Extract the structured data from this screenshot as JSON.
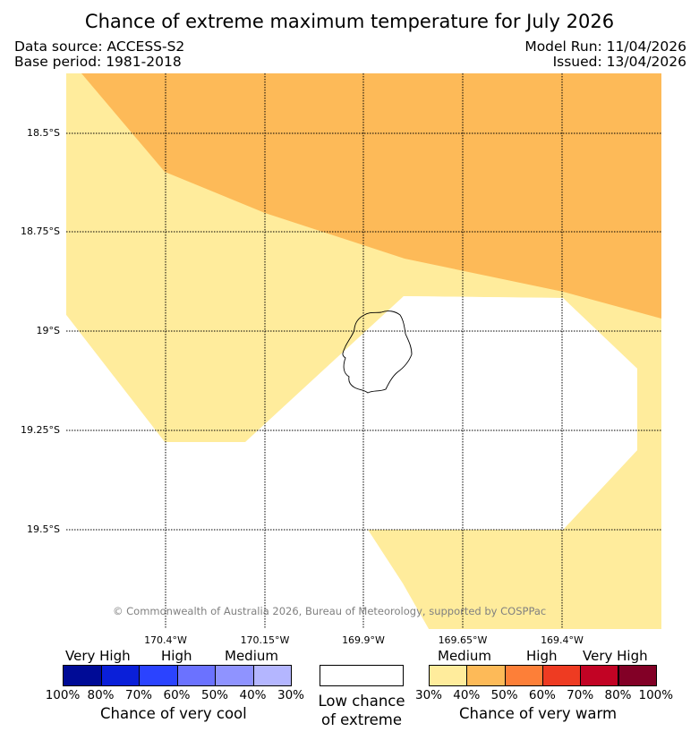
{
  "header": {
    "title": "Chance of extreme maximum temperature for July 2026",
    "data_source": "Data source: ACCESS-S2",
    "base_period": "Base period: 1981-2018",
    "model_run": "Model Run: 11/04/2026",
    "issued": "Issued: 13/04/2026"
  },
  "map": {
    "latitude_labels": [
      "18.5°S",
      "18.75°S",
      "19°S",
      "19.25°S",
      "19.5°S"
    ],
    "longitude_labels": [
      "170.4°W",
      "170.15°W",
      "169.9°W",
      "169.65°W",
      "169.4°W"
    ],
    "credit": "© Commonwealth of Australia 2026, Bureau of Meteorology, supported by COSPPac"
  },
  "colorbar": {
    "cool": {
      "categories": [
        "Very High",
        "High",
        "Medium"
      ],
      "percents": [
        "100%",
        "80%",
        "70%",
        "60%",
        "50%",
        "40%",
        "30%"
      ],
      "colors": [
        "#000b96",
        "#0a1fd9",
        "#2b43ff",
        "#6b72ff",
        "#8f93ff",
        "#b4b6ff"
      ],
      "caption": "Chance of very cool"
    },
    "neutral": {
      "color": "#ffffff",
      "caption_line1": "Low chance",
      "caption_line2": "of extreme"
    },
    "warm": {
      "categories": [
        "Medium",
        "High",
        "Very High"
      ],
      "percents": [
        "30%",
        "40%",
        "50%",
        "60%",
        "70%",
        "80%",
        "100%"
      ],
      "colors": [
        "#ffec9c",
        "#fdba58",
        "#fd7f38",
        "#ee3b22",
        "#c20324",
        "#820026"
      ],
      "caption": "Chance of very warm"
    }
  }
}
